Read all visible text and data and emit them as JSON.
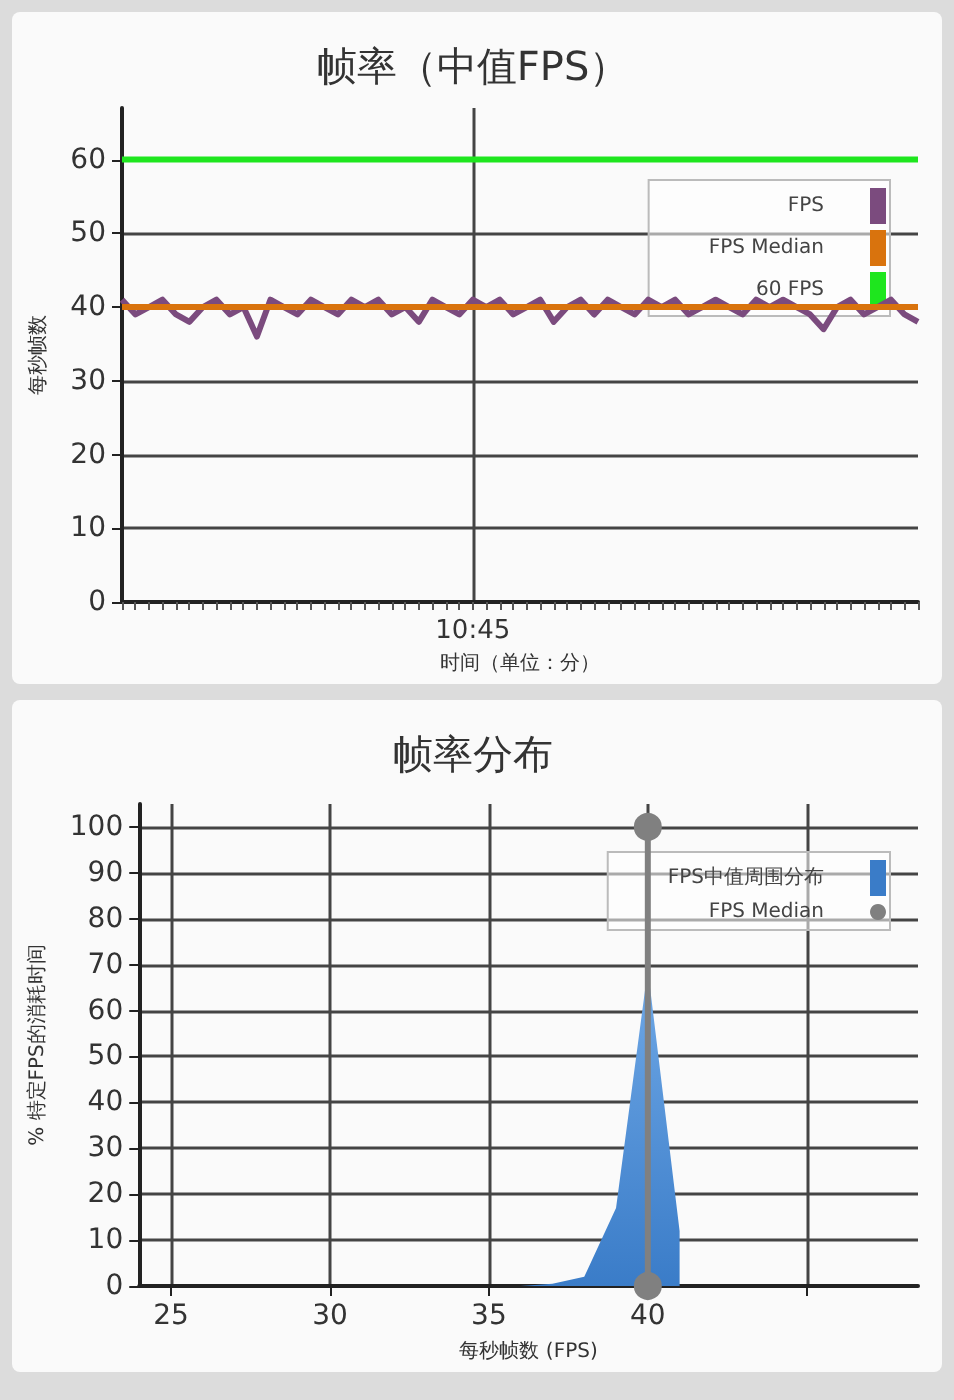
{
  "chart_data": [
    {
      "type": "line",
      "title": "帧率（中值FPS）",
      "xlabel": "时间（单位：分）",
      "ylabel": "每秒帧数",
      "categories": [
        null,
        null,
        null,
        null,
        null,
        null,
        null,
        null,
        null,
        null,
        null,
        null,
        null,
        null,
        null,
        null,
        null,
        null,
        null,
        null,
        null,
        null,
        null,
        null,
        null,
        null,
        "10:45",
        null,
        null,
        null,
        null,
        null,
        null,
        null,
        null,
        null,
        null,
        null,
        null,
        null,
        null,
        null,
        null,
        null,
        null,
        null,
        null,
        null,
        null,
        null,
        null,
        null,
        null,
        null,
        null,
        null,
        null,
        null,
        null,
        null
      ],
      "series": [
        {
          "name": "FPS",
          "color": "#7b4b7e",
          "values": [
            41,
            39,
            40,
            41,
            39,
            38,
            40,
            41,
            39,
            40,
            36,
            41,
            40,
            39,
            41,
            40,
            39,
            41,
            40,
            41,
            39,
            40,
            38,
            41,
            40,
            39,
            41,
            40,
            41,
            39,
            40,
            41,
            38,
            40,
            41,
            39,
            41,
            40,
            39,
            41,
            40,
            41,
            39,
            40,
            41,
            40,
            39,
            41,
            40,
            41,
            40,
            39,
            37,
            40,
            41,
            39,
            40,
            41,
            39,
            38
          ]
        },
        {
          "name": "FPS Median",
          "color": "#d9730d",
          "values": [
            40,
            40,
            40,
            40,
            40,
            40,
            40,
            40,
            40,
            40,
            40,
            40,
            40,
            40,
            40,
            40,
            40,
            40,
            40,
            40,
            40,
            40,
            40,
            40,
            40,
            40,
            40,
            40,
            40,
            40,
            40,
            40,
            40,
            40,
            40,
            40,
            40,
            40,
            40,
            40,
            40,
            40,
            40,
            40,
            40,
            40,
            40,
            40,
            40,
            40,
            40,
            40,
            40,
            40,
            40,
            40,
            40,
            40,
            40,
            40
          ]
        },
        {
          "name": "60 FPS",
          "color": "#1ee61e",
          "values": [
            60,
            60,
            60,
            60,
            60,
            60,
            60,
            60,
            60,
            60,
            60,
            60,
            60,
            60,
            60,
            60,
            60,
            60,
            60,
            60,
            60,
            60,
            60,
            60,
            60,
            60,
            60,
            60,
            60,
            60,
            60,
            60,
            60,
            60,
            60,
            60,
            60,
            60,
            60,
            60,
            60,
            60,
            60,
            60,
            60,
            60,
            60,
            60,
            60,
            60,
            60,
            60,
            60,
            60,
            60,
            60,
            60,
            60,
            60,
            60
          ]
        }
      ],
      "ylim": [
        0,
        67
      ],
      "yticks": [
        0,
        10,
        20,
        30,
        40,
        50,
        60
      ],
      "grid": true,
      "legend": "top right",
      "marker": "none"
    },
    {
      "type": "area",
      "title": "帧率分布",
      "xlabel": "每秒帧数 (FPS)",
      "ylabel": "% 特定FPS的消耗时间",
      "series": [
        {
          "name": "FPS中值周围分布",
          "color": "#3a7cc8",
          "x": [
            24,
            26,
            28,
            30,
            32,
            34,
            36,
            37,
            38,
            39,
            40,
            41,
            41
          ],
          "values": [
            0,
            0,
            0,
            0,
            0,
            0,
            0,
            0.5,
            2,
            17,
            69,
            12,
            0
          ]
        },
        {
          "name": "FPS Median",
          "type": "line",
          "color": "#808080",
          "marker": "circle",
          "x": [
            40,
            40
          ],
          "values": [
            0,
            100
          ]
        }
      ],
      "xlim": [
        24,
        48.5
      ],
      "xticks": [
        25,
        30,
        35,
        40,
        {
          "value": 45,
          "label": null
        }
      ],
      "ylim": [
        0,
        105
      ],
      "yticks": [
        0,
        10,
        20,
        30,
        40,
        50,
        60,
        70,
        80,
        90,
        100
      ],
      "grid": true,
      "legend": "top right"
    }
  ]
}
